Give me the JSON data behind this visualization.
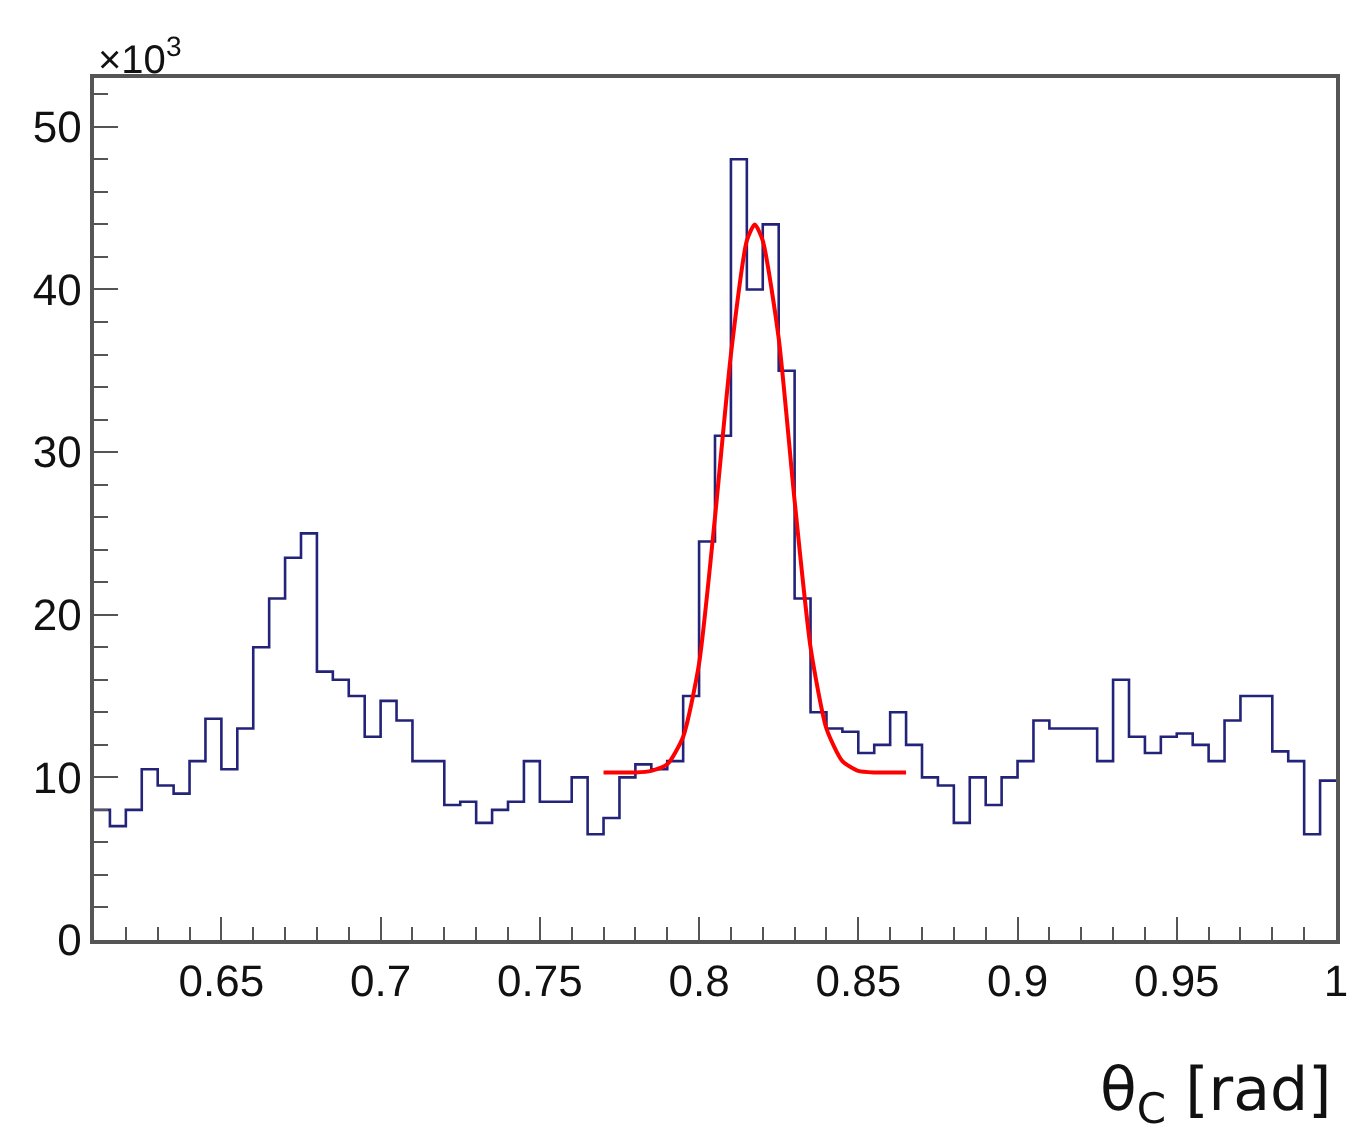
{
  "chart_data": {
    "type": "histogram",
    "xlabel": "θ$_{C}$ [rad]",
    "annotations": [
      "×10$^{3}$"
    ],
    "bins": [
      0.61,
      0.615,
      0.62,
      0.625,
      0.63,
      0.635,
      0.64,
      0.645,
      0.65,
      0.655,
      0.66,
      0.665,
      0.67,
      0.675,
      0.68,
      0.685,
      0.69,
      0.695,
      0.7,
      0.705,
      0.71,
      0.715,
      0.72,
      0.725,
      0.73,
      0.735,
      0.74,
      0.745,
      0.75,
      0.755,
      0.76,
      0.765,
      0.77,
      0.775,
      0.78,
      0.785,
      0.79,
      0.795,
      0.8,
      0.805,
      0.81,
      0.815,
      0.82,
      0.825,
      0.83,
      0.835,
      0.84,
      0.845,
      0.85,
      0.855,
      0.86,
      0.865,
      0.87,
      0.875,
      0.88,
      0.885,
      0.89,
      0.895,
      0.9,
      0.905,
      0.91,
      0.915,
      0.92,
      0.925,
      0.93,
      0.935,
      0.94,
      0.945,
      0.95,
      0.955,
      0.96,
      0.965,
      0.97,
      0.975,
      0.98,
      0.985,
      0.99,
      0.995,
      1.0
    ],
    "values": [
      8,
      7,
      8,
      10.5,
      9.5,
      9,
      11,
      13.6,
      10.5,
      13,
      18,
      21,
      23.5,
      25,
      16.5,
      16,
      15,
      12.5,
      14.7,
      13.5,
      11,
      11,
      8.3,
      8.5,
      7.2,
      8,
      8.5,
      11,
      8.5,
      8.5,
      10,
      6.5,
      7.5,
      10,
      10.8,
      10.5,
      11,
      15,
      24.5,
      31,
      48,
      40,
      44,
      35,
      21,
      14,
      13,
      12.8,
      11.5,
      12,
      14,
      12,
      10,
      9.5,
      7.2,
      10,
      8.3,
      10,
      11,
      13.5,
      13,
      13,
      13,
      11,
      16,
      12.5,
      11.5,
      12.5,
      12.7,
      12,
      11,
      13.5,
      15,
      15,
      11.6,
      11,
      6.5,
      9.8
    ],
    "color": "#23237a",
    "series": [
      {
        "type": "line",
        "color": "#ff0000",
        "x": [
          0.77,
          0.78,
          0.785,
          0.79,
          0.795,
          0.8,
          0.805,
          0.81,
          0.815,
          0.8175,
          0.82,
          0.825,
          0.83,
          0.835,
          0.84,
          0.845,
          0.85,
          0.855,
          0.865
        ],
        "values": [
          10.3,
          10.3,
          10.4,
          10.8,
          12.5,
          17,
          26,
          36,
          43,
          44,
          43,
          37,
          27,
          18,
          13,
          11,
          10.4,
          10.3,
          10.3
        ]
      }
    ],
    "xlim": [
      0.61,
      1.0
    ],
    "xticks": [
      0.65,
      0.7,
      0.75,
      0.8,
      0.85,
      0.9,
      0.95,
      1
    ],
    "ylim": [
      0,
      53
    ],
    "yticks": [
      0,
      10,
      20,
      30,
      40,
      50
    ]
  }
}
